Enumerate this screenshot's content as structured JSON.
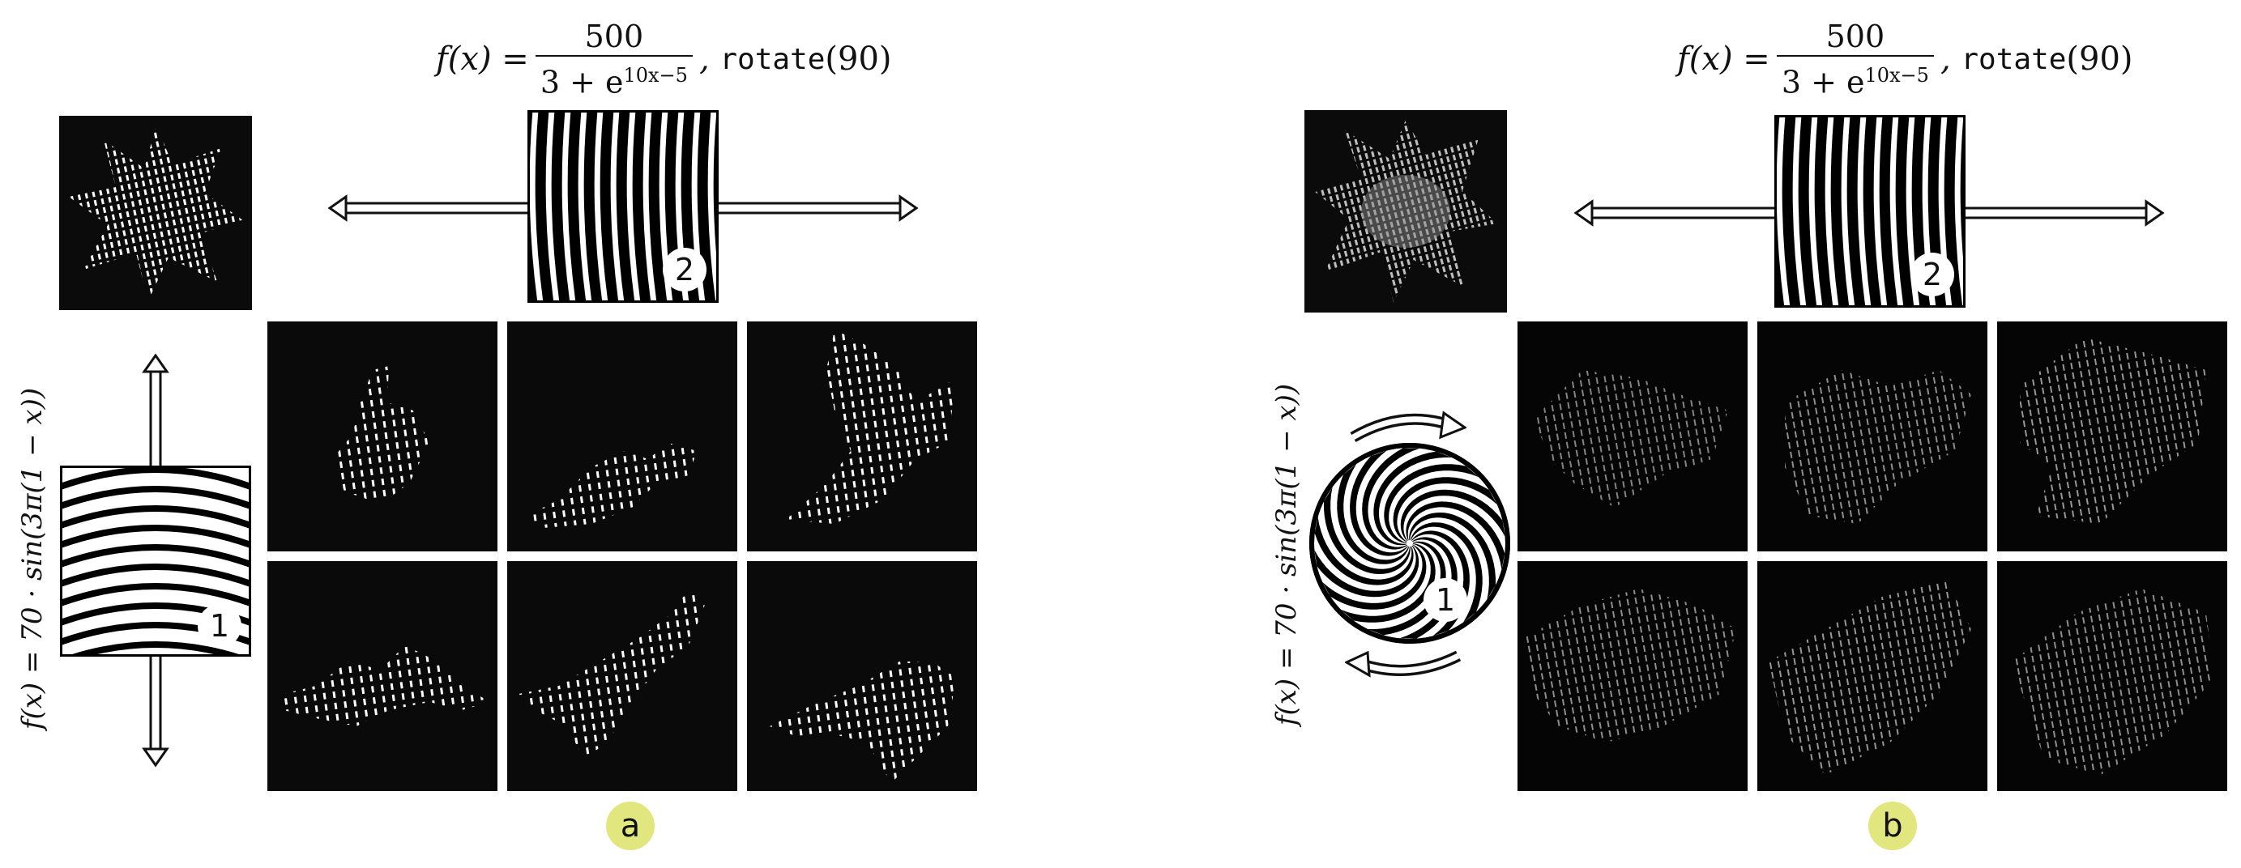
{
  "panel_a": {
    "badge": "a",
    "formula_top": {
      "lhs": "f(x) =",
      "num": "500",
      "den_base": "3 + e",
      "den_exp": "10x−5",
      "suffix_func": "rotate",
      "suffix_arg": "(90)"
    },
    "formula_side": "f(x) = 70 · sin(3π(1 − x))",
    "grating1_label": "1",
    "grating2_label": "2"
  },
  "panel_b": {
    "badge": "b",
    "formula_top": {
      "lhs": "f(x) =",
      "num": "500",
      "den_base": "3 + e",
      "den_exp": "10x−5",
      "suffix_func": "rotate",
      "suffix_arg": "(90)"
    },
    "formula_side": "f(x) = 70 · sin(3π(1 − x))",
    "grating1_label": "1",
    "grating2_label": "2"
  }
}
